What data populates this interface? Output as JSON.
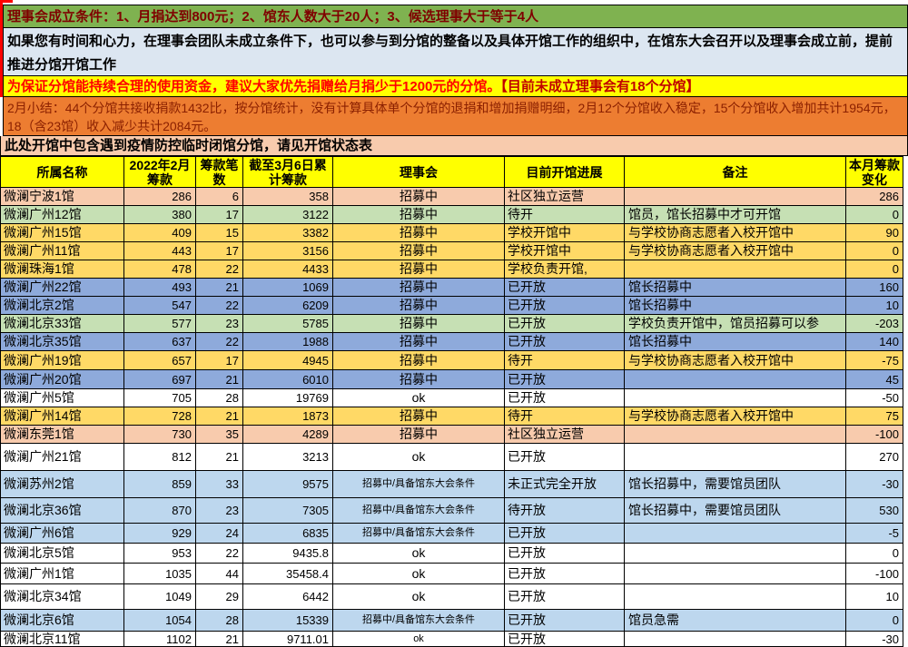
{
  "banners": {
    "condition": "理事会成立条件：1、月捐达到800元；2、馆东人数大于20人；3、候选理事大于等于4人",
    "invite": "如果您有时间和心力，在理事会团队未成立条件下，也可以参与到分馆的整备以及具体开馆工作的组织中，在馆东大会召开以及理事会成立前，提前推进分馆开馆工作",
    "donate_main": "为保证分馆能持续合理的使用资金，建议大家优先捐赠给月捐少于1200元的分馆。",
    "donate_highlight": "【目前未成立理事会有18个分馆】",
    "summary": "2月小结：44个分馆共接收捐款1432比，按分馆统计，没有计算具体单个分馆的退捐和增加捐赠明细，2月12个分馆收入稳定，15个分馆收入增加共计1954元，18（含23馆）收入减少共计2084元。",
    "status_note": "此处开馆中包含遇到疫情防控临时闭馆分馆，请见开馆状态表"
  },
  "colors": {
    "banner_condition_bg": "#7FB250",
    "banner_condition_fg": "#7F0000",
    "banner_invite_bg": "#DCE6F1",
    "banner_invite_fg": "#000000",
    "banner_donate_bg": "#FFFF00",
    "banner_donate_fg": "#FF0000",
    "banner_donate_highlight_fg": "#C00000",
    "banner_summary_bg": "#ED7D31",
    "banner_summary_fg": "#8B2000",
    "banner_status_bg": "#F8CBAD",
    "banner_status_fg": "#000000",
    "header_bg": "#FFFF00",
    "row_peach": "#F8CBAD",
    "row_green": "#C6E0B4",
    "row_gold": "#FFD966",
    "row_blue": "#8EAADB",
    "row_lightblue": "#BDD7EE",
    "row_white": "#FFFFFF"
  },
  "table": {
    "headers": [
      "所属名称",
      "2022年2月筹款",
      "筹款笔数",
      "截至3月6日累计筹款",
      "理事会",
      "目前开馆进展",
      "备注",
      "本月筹款变化"
    ],
    "rows": [
      {
        "name": "微澜宁波1馆",
        "feb": "286",
        "cnt": "6",
        "cum": "358",
        "council": "招募中",
        "small": false,
        "progress": "社区独立运营",
        "note": "",
        "change": "286",
        "bg": "#F8CBAD"
      },
      {
        "name": "微澜广州12馆",
        "feb": "380",
        "cnt": "17",
        "cum": "3122",
        "council": "招募中",
        "small": false,
        "progress": "待开",
        "note": "馆员，馆长招募中才可开馆",
        "change": "0",
        "bg": "#C6E0B4"
      },
      {
        "name": "微澜广州15馆",
        "feb": "409",
        "cnt": "15",
        "cum": "3382",
        "council": "招募中",
        "small": false,
        "progress": "学校开馆中",
        "note": "与学校协商志愿者入校开馆中",
        "change": "90",
        "bg": "#FFD966"
      },
      {
        "name": "微澜广州11馆",
        "feb": "443",
        "cnt": "17",
        "cum": "3156",
        "council": "招募中",
        "small": false,
        "progress": "学校开馆中",
        "note": "与学校协商志愿者入校开馆中",
        "change": "0",
        "bg": "#FFD966"
      },
      {
        "name": "微澜珠海1馆",
        "feb": "478",
        "cnt": "22",
        "cum": "4433",
        "council": "招募中",
        "small": false,
        "progress": "学校负责开馆,",
        "note": "",
        "change": "0",
        "bg": "#FFD966"
      },
      {
        "name": "微澜广州22馆",
        "feb": "493",
        "cnt": "21",
        "cum": "1069",
        "council": "招募中",
        "small": false,
        "progress": "已开放",
        "note": "馆长招募中",
        "change": "160",
        "bg": "#8EAADB"
      },
      {
        "name": "微澜北京2馆",
        "feb": "547",
        "cnt": "22",
        "cum": "6209",
        "council": "招募中",
        "small": false,
        "progress": "已开放",
        "note": "馆长招募中",
        "change": "10",
        "bg": "#8EAADB"
      },
      {
        "name": "微澜北京33馆",
        "feb": "577",
        "cnt": "23",
        "cum": "5785",
        "council": "招募中",
        "small": false,
        "progress": "已开放",
        "note": "学校负责开馆中，馆员招募可以参",
        "change": "-203",
        "bg": "#C6E0B4"
      },
      {
        "name": "微澜北京35馆",
        "feb": "637",
        "cnt": "22",
        "cum": "1988",
        "council": "招募中",
        "small": false,
        "progress": "已开放",
        "note": "馆长招募中",
        "change": "140",
        "bg": "#8EAADB"
      },
      {
        "name": "微澜广州19馆",
        "feb": "657",
        "cnt": "17",
        "cum": "4945",
        "council": "招募中",
        "small": false,
        "progress": "待开",
        "note": "与学校协商志愿者入校开馆中",
        "change": "-75",
        "bg": "#FFD966"
      },
      {
        "name": "微澜广州20馆",
        "feb": "697",
        "cnt": "21",
        "cum": "6010",
        "council": "招募中",
        "small": false,
        "progress": "已开放",
        "note": "",
        "change": "45",
        "bg": "#8EAADB"
      },
      {
        "name": "微澜广州5馆",
        "feb": "705",
        "cnt": "28",
        "cum": "19769",
        "council": "ok",
        "small": false,
        "progress": "已开放",
        "note": "",
        "change": "-50",
        "bg": "#FFFFFF"
      },
      {
        "name": "微澜广州14馆",
        "feb": "728",
        "cnt": "21",
        "cum": "1873",
        "council": "招募中",
        "small": false,
        "progress": "待开",
        "note": "与学校协商志愿者入校开馆中",
        "change": "75",
        "bg": "#FFD966"
      },
      {
        "name": "微澜东莞1馆",
        "feb": "730",
        "cnt": "35",
        "cum": "4289",
        "council": "招募中",
        "small": false,
        "progress": "社区独立运营",
        "note": "",
        "change": "-100",
        "bg": "#F8CBAD"
      },
      {
        "name": "微澜广州21馆",
        "feb": "812",
        "cnt": "21",
        "cum": "3213",
        "council": "ok",
        "small": false,
        "progress": "已开放",
        "note": "",
        "change": "270",
        "bg": "#FFFFFF"
      },
      {
        "name": "微澜苏州2馆",
        "feb": "859",
        "cnt": "33",
        "cum": "9575",
        "council": "招募中/具备馆东大会条件",
        "small": true,
        "progress": "未正式完全开放",
        "note": "馆长招募中，需要馆员团队",
        "change": "-30",
        "bg": "#BDD7EE"
      },
      {
        "name": "微澜北京36馆",
        "feb": "870",
        "cnt": "23",
        "cum": "7305",
        "council": "招募中/具备馆东大会条件",
        "small": true,
        "progress": "待开放",
        "note": "馆长招募中，需要馆员团队",
        "change": "530",
        "bg": "#BDD7EE"
      },
      {
        "name": "微澜广州6馆",
        "feb": "929",
        "cnt": "24",
        "cum": "6835",
        "council": "招募中/具备馆东大会条件",
        "small": true,
        "progress": "已开放",
        "note": "",
        "change": "-5",
        "bg": "#BDD7EE"
      },
      {
        "name": "微澜北京5馆",
        "feb": "953",
        "cnt": "22",
        "cum": "9435.8",
        "council": "ok",
        "small": false,
        "progress": "已开放",
        "note": "",
        "change": "0",
        "bg": "#FFFFFF"
      },
      {
        "name": "微澜广州1馆",
        "feb": "1035",
        "cnt": "44",
        "cum": "35458.4",
        "council": "ok",
        "small": false,
        "progress": "已开放",
        "note": "",
        "change": "-100",
        "bg": "#FFFFFF"
      },
      {
        "name": "微澜北京34馆",
        "feb": "1049",
        "cnt": "29",
        "cum": "6442",
        "council": "ok",
        "small": false,
        "progress": "已开放",
        "note": "",
        "change": "10",
        "bg": "#FFFFFF"
      },
      {
        "name": "微澜北京6馆",
        "feb": "1054",
        "cnt": "28",
        "cum": "15339",
        "council": "招募中/具备馆东大会条件",
        "small": true,
        "progress": "已开放",
        "note": "馆员急需",
        "change": "0",
        "bg": "#BDD7EE"
      },
      {
        "name": "微澜北京11馆",
        "feb": "1102",
        "cnt": "21",
        "cum": "9711.01",
        "council": "ok",
        "small": true,
        "progress": "已开放",
        "note": "",
        "change": "-30",
        "bg": "#FFFFFF"
      }
    ]
  }
}
